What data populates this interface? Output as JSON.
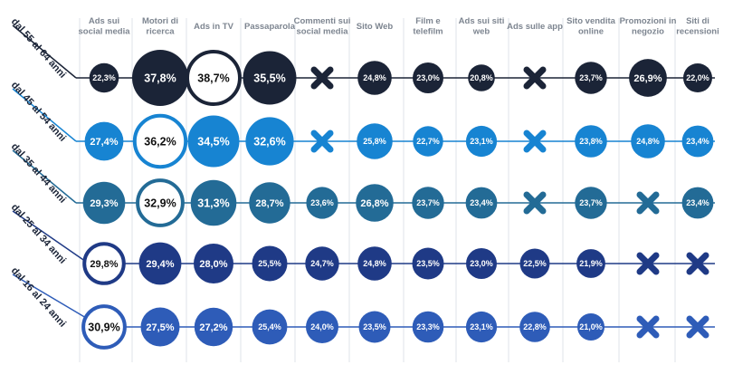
{
  "chart_data": {
    "type": "bubble-matrix",
    "columns": [
      "Ads sui social media",
      "Motori di ricerca",
      "Ads in TV",
      "Passaparola",
      "Commenti sui social media",
      "Sito Web",
      "Film e telefilm",
      "Ads sui siti web",
      "Ads sulle app",
      "Sito vendita online",
      "Promozioni in negozio",
      "Siti di recensioni"
    ],
    "rows": [
      {
        "label": "dal 55 al 64 anni",
        "color": "#1b2437",
        "values": [
          "22,3%",
          "37,8%",
          "38,7%",
          "35,5%",
          null,
          "24,8%",
          "23,0%",
          "20,8%",
          null,
          "23,7%",
          "26,9%",
          "22,0%"
        ]
      },
      {
        "label": "dal 45 al 54 anni",
        "color": "#1784d2",
        "values": [
          "27,4%",
          "36,2%",
          "34,5%",
          "32,6%",
          null,
          "25,8%",
          "22,7%",
          "23,1%",
          null,
          "23,8%",
          "24,8%",
          "23,4%"
        ]
      },
      {
        "label": "dal 35 al 44 anni",
        "color": "#236b96",
        "values": [
          "29,3%",
          "32,9%",
          "31,3%",
          "28,7%",
          "23,6%",
          "26,8%",
          "23,7%",
          "23,4%",
          null,
          "23,7%",
          null,
          "23,4%"
        ]
      },
      {
        "label": "dal 25 al 34 anni",
        "color": "#1f3a86",
        "values": [
          "29,8%",
          "29,4%",
          "28,0%",
          "25,5%",
          "24,7%",
          "24,8%",
          "23,5%",
          "23,0%",
          "22,5%",
          "21,9%",
          null,
          null
        ]
      },
      {
        "label": "dal 16 al 24 anni",
        "color": "#2e5cb8",
        "values": [
          "30,9%",
          "27,5%",
          "27,2%",
          "25,4%",
          "24,0%",
          "23,5%",
          "23,3%",
          "23,1%",
          "22,8%",
          "21,0%",
          null,
          null
        ]
      }
    ],
    "highlight": [
      [
        0,
        2
      ],
      [
        1,
        1
      ],
      [
        2,
        1
      ],
      [
        3,
        0
      ],
      [
        4,
        0
      ]
    ],
    "missing_marker": "cross-icon"
  }
}
